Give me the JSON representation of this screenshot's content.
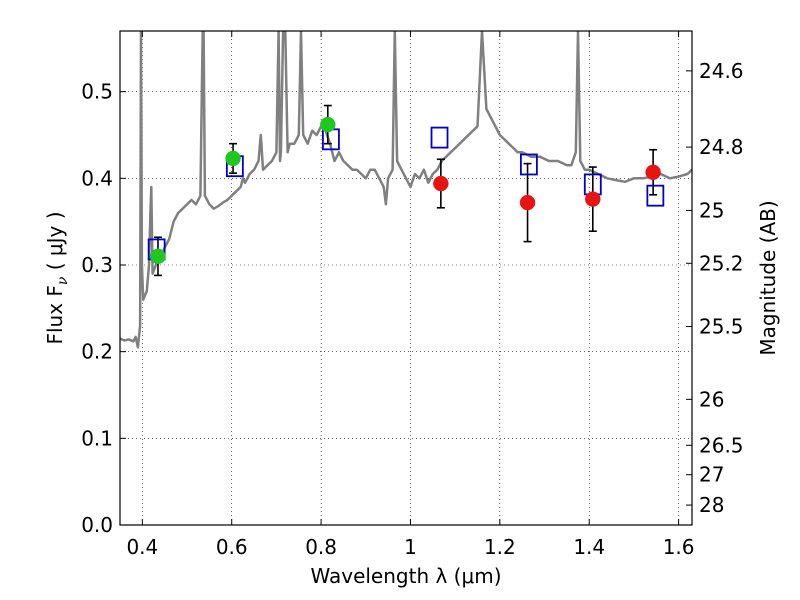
{
  "chart_data": {
    "type": "scatter",
    "xlabel": "Wavelength  λ (μm)",
    "ylabel_left": "Flux  F",
    "ylabel_left_sub": "ν",
    "ylabel_left_units": " ( μJy )",
    "ylabel_right": "Magnitude (AB)",
    "xlim": [
      0.35,
      1.63
    ],
    "ylim": [
      0.0,
      0.57
    ],
    "grid": true,
    "x_ticks": [
      0.4,
      0.6,
      0.8,
      1.0,
      1.2,
      1.4,
      1.6
    ],
    "x_tick_labels": [
      "0.4",
      "0.6",
      "0.8",
      "1",
      "1.2",
      "1.4",
      "1.6"
    ],
    "y_ticks": [
      0.0,
      0.1,
      0.2,
      0.3,
      0.4,
      0.5
    ],
    "y_tick_labels": [
      "0.0",
      "0.1",
      "0.2",
      "0.3",
      "0.4",
      "0.5"
    ],
    "right_ticks": [
      {
        "label": "24.6",
        "flux": 0.524
      },
      {
        "label": "24.8",
        "flux": 0.436
      },
      {
        "label": "25",
        "flux": 0.363
      },
      {
        "label": "25.2",
        "flux": 0.302
      },
      {
        "label": "25.5",
        "flux": 0.229
      },
      {
        "label": "26",
        "flux": 0.145
      },
      {
        "label": "26.5",
        "flux": 0.092
      },
      {
        "label": "27",
        "flux": 0.058
      },
      {
        "label": "28",
        "flux": 0.023
      }
    ],
    "model_spectrum": {
      "name": "Model SED",
      "color": "#808080",
      "points": [
        [
          0.35,
          0.215
        ],
        [
          0.36,
          0.213
        ],
        [
          0.37,
          0.214
        ],
        [
          0.38,
          0.212
        ],
        [
          0.385,
          0.217
        ],
        [
          0.39,
          0.205
        ],
        [
          0.395,
          0.23
        ],
        [
          0.397,
          0.57
        ],
        [
          0.399,
          0.3
        ],
        [
          0.402,
          0.26
        ],
        [
          0.41,
          0.27
        ],
        [
          0.415,
          0.3
        ],
        [
          0.418,
          0.36
        ],
        [
          0.42,
          0.39
        ],
        [
          0.423,
          0.29
        ],
        [
          0.43,
          0.3
        ],
        [
          0.44,
          0.31
        ],
        [
          0.45,
          0.32
        ],
        [
          0.46,
          0.33
        ],
        [
          0.465,
          0.34
        ],
        [
          0.47,
          0.35
        ],
        [
          0.48,
          0.36
        ],
        [
          0.49,
          0.365
        ],
        [
          0.5,
          0.37
        ],
        [
          0.51,
          0.375
        ],
        [
          0.52,
          0.37
        ],
        [
          0.53,
          0.38
        ],
        [
          0.535,
          0.57
        ],
        [
          0.537,
          0.57
        ],
        [
          0.54,
          0.38
        ],
        [
          0.55,
          0.37
        ],
        [
          0.56,
          0.365
        ],
        [
          0.57,
          0.368
        ],
        [
          0.58,
          0.372
        ],
        [
          0.59,
          0.375
        ],
        [
          0.6,
          0.38
        ],
        [
          0.61,
          0.385
        ],
        [
          0.62,
          0.39
        ],
        [
          0.625,
          0.4
        ],
        [
          0.63,
          0.395
        ],
        [
          0.64,
          0.405
        ],
        [
          0.65,
          0.41
        ],
        [
          0.66,
          0.42
        ],
        [
          0.665,
          0.45
        ],
        [
          0.67,
          0.41
        ],
        [
          0.68,
          0.415
        ],
        [
          0.69,
          0.42
        ],
        [
          0.7,
          0.43
        ],
        [
          0.705,
          0.57
        ],
        [
          0.708,
          0.42
        ],
        [
          0.71,
          0.43
        ],
        [
          0.715,
          0.57
        ],
        [
          0.72,
          0.57
        ],
        [
          0.725,
          0.43
        ],
        [
          0.73,
          0.44
        ],
        [
          0.74,
          0.44
        ],
        [
          0.75,
          0.45
        ],
        [
          0.755,
          0.57
        ],
        [
          0.76,
          0.45
        ],
        [
          0.77,
          0.44
        ],
        [
          0.78,
          0.455
        ],
        [
          0.79,
          0.45
        ],
        [
          0.8,
          0.46
        ],
        [
          0.81,
          0.455
        ],
        [
          0.82,
          0.44
        ],
        [
          0.83,
          0.42
        ],
        [
          0.84,
          0.43
        ],
        [
          0.85,
          0.42
        ],
        [
          0.86,
          0.415
        ],
        [
          0.87,
          0.41
        ],
        [
          0.88,
          0.41
        ],
        [
          0.89,
          0.405
        ],
        [
          0.9,
          0.4
        ],
        [
          0.91,
          0.41
        ],
        [
          0.92,
          0.41
        ],
        [
          0.93,
          0.4
        ],
        [
          0.94,
          0.39
        ],
        [
          0.945,
          0.37
        ],
        [
          0.95,
          0.4
        ],
        [
          0.96,
          0.41
        ],
        [
          0.965,
          0.57
        ],
        [
          0.97,
          0.42
        ],
        [
          0.98,
          0.41
        ],
        [
          0.99,
          0.4
        ],
        [
          1.0,
          0.39
        ],
        [
          1.01,
          0.405
        ],
        [
          1.02,
          0.4
        ],
        [
          1.03,
          0.41
        ],
        [
          1.04,
          0.395
        ],
        [
          1.05,
          0.405
        ],
        [
          1.06,
          0.41
        ],
        [
          1.07,
          0.42
        ],
        [
          1.08,
          0.425
        ],
        [
          1.09,
          0.43
        ],
        [
          1.1,
          0.435
        ],
        [
          1.11,
          0.44
        ],
        [
          1.12,
          0.445
        ],
        [
          1.13,
          0.45
        ],
        [
          1.14,
          0.455
        ],
        [
          1.15,
          0.46
        ],
        [
          1.16,
          0.57
        ],
        [
          1.17,
          0.48
        ],
        [
          1.18,
          0.47
        ],
        [
          1.19,
          0.46
        ],
        [
          1.2,
          0.45
        ],
        [
          1.21,
          0.445
        ],
        [
          1.22,
          0.44
        ],
        [
          1.23,
          0.435
        ],
        [
          1.24,
          0.43
        ],
        [
          1.25,
          0.43
        ],
        [
          1.27,
          0.425
        ],
        [
          1.29,
          0.425
        ],
        [
          1.31,
          0.42
        ],
        [
          1.33,
          0.42
        ],
        [
          1.35,
          0.415
        ],
        [
          1.36,
          0.415
        ],
        [
          1.37,
          0.43
        ],
        [
          1.375,
          0.57
        ],
        [
          1.38,
          0.42
        ],
        [
          1.39,
          0.41
        ],
        [
          1.4,
          0.41
        ],
        [
          1.42,
          0.405
        ],
        [
          1.44,
          0.4
        ],
        [
          1.46,
          0.398
        ],
        [
          1.48,
          0.396
        ],
        [
          1.5,
          0.4
        ],
        [
          1.52,
          0.4
        ],
        [
          1.54,
          0.402
        ],
        [
          1.56,
          0.405
        ],
        [
          1.58,
          0.4
        ],
        [
          1.6,
          0.402
        ],
        [
          1.62,
          0.405
        ],
        [
          1.63,
          0.41
        ]
      ]
    },
    "series": [
      {
        "name": "green points",
        "color": "#1ec81e",
        "points": [
          {
            "x": 0.435,
            "y": 0.31,
            "err": 0.022
          },
          {
            "x": 0.603,
            "y": 0.423,
            "err": 0.017
          },
          {
            "x": 0.815,
            "y": 0.462,
            "err": 0.022
          }
        ]
      },
      {
        "name": "red points",
        "color": "#e81414",
        "points": [
          {
            "x": 1.068,
            "y": 0.394,
            "err": 0.028
          },
          {
            "x": 1.262,
            "y": 0.372,
            "err": 0.045
          },
          {
            "x": 1.408,
            "y": 0.376,
            "err": 0.037
          },
          {
            "x": 1.543,
            "y": 0.407,
            "err": 0.026
          }
        ]
      },
      {
        "name": "blue squares",
        "color": "#0000cc",
        "points": [
          {
            "x": 0.432,
            "y": 0.318
          },
          {
            "x": 0.607,
            "y": 0.414
          },
          {
            "x": 0.822,
            "y": 0.445
          },
          {
            "x": 1.065,
            "y": 0.447
          },
          {
            "x": 1.265,
            "y": 0.416
          },
          {
            "x": 1.408,
            "y": 0.393
          },
          {
            "x": 1.548,
            "y": 0.38
          }
        ]
      }
    ]
  }
}
